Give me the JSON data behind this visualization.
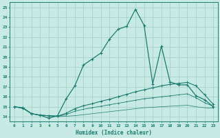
{
  "xlabel": "Humidex (Indice chaleur)",
  "xlim": [
    -0.5,
    23.5
  ],
  "ylim": [
    13.5,
    25.5
  ],
  "xticks": [
    0,
    1,
    2,
    3,
    4,
    5,
    6,
    7,
    8,
    9,
    10,
    11,
    12,
    13,
    14,
    15,
    16,
    17,
    18,
    19,
    20,
    21,
    22,
    23
  ],
  "yticks": [
    14,
    15,
    16,
    17,
    18,
    19,
    20,
    21,
    22,
    23,
    24,
    25
  ],
  "bg_color": "#c8eae4",
  "grid_color": "#a0ccc6",
  "line_color": "#1a7a6e",
  "line1_x": [
    0,
    1,
    2,
    3,
    4,
    5,
    6,
    7,
    8,
    9,
    10,
    11,
    12,
    13,
    14,
    15,
    16,
    17,
    18,
    19,
    20,
    21,
    22,
    23
  ],
  "line1_y": [
    15.0,
    14.9,
    14.3,
    14.15,
    13.85,
    14.1,
    15.8,
    17.1,
    19.2,
    19.8,
    20.4,
    21.8,
    22.8,
    23.1,
    24.8,
    23.2,
    17.3,
    21.1,
    17.5,
    17.2,
    17.2,
    16.1,
    15.7,
    15.0
  ],
  "line2_x": [
    0,
    1,
    2,
    3,
    4,
    5,
    6,
    7,
    8,
    9,
    10,
    11,
    12,
    13,
    14,
    15,
    16,
    17,
    18,
    19,
    20,
    21,
    22,
    23
  ],
  "line2_y": [
    15.0,
    14.85,
    14.3,
    14.15,
    14.1,
    14.05,
    14.35,
    14.8,
    15.1,
    15.3,
    15.55,
    15.75,
    16.0,
    16.25,
    16.5,
    16.7,
    16.9,
    17.1,
    17.25,
    17.35,
    17.45,
    17.1,
    16.2,
    15.25
  ],
  "line3_x": [
    0,
    1,
    2,
    3,
    4,
    5,
    6,
    7,
    8,
    9,
    10,
    11,
    12,
    13,
    14,
    15,
    16,
    17,
    18,
    19,
    20,
    21,
    22,
    23
  ],
  "line3_y": [
    15.0,
    14.85,
    14.3,
    14.15,
    14.1,
    14.05,
    14.2,
    14.55,
    14.75,
    14.9,
    15.05,
    15.2,
    15.35,
    15.5,
    15.65,
    15.8,
    15.9,
    16.0,
    16.1,
    16.2,
    16.3,
    15.9,
    15.4,
    15.05
  ],
  "line4_x": [
    0,
    1,
    2,
    3,
    4,
    5,
    6,
    7,
    8,
    9,
    10,
    11,
    12,
    13,
    14,
    15,
    16,
    17,
    18,
    19,
    20,
    21,
    22,
    23
  ],
  "line4_y": [
    15.0,
    14.85,
    14.3,
    14.15,
    14.1,
    14.0,
    14.05,
    14.1,
    14.2,
    14.3,
    14.4,
    14.5,
    14.6,
    14.7,
    14.8,
    14.9,
    14.95,
    15.0,
    15.05,
    15.1,
    15.15,
    15.0,
    14.9,
    14.85
  ]
}
